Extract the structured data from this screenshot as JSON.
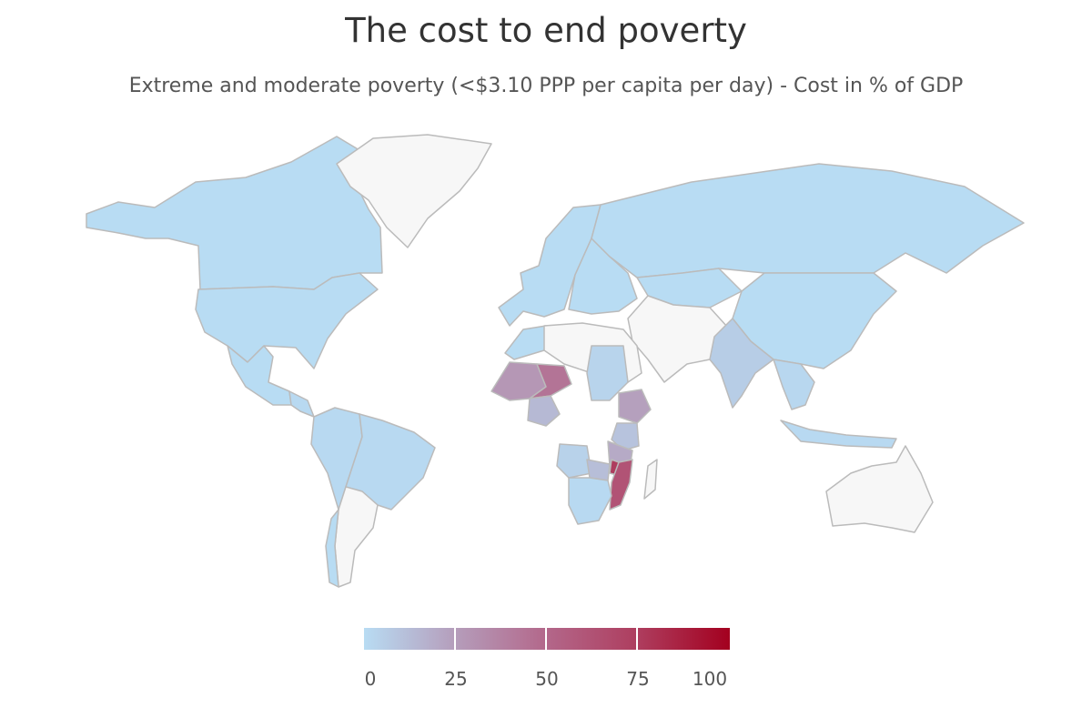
{
  "title": "The cost to end poverty",
  "subtitle": "Extreme and moderate poverty (<$3.10 PPP per capita per day) - Cost in % of GDP",
  "legend": {
    "ticks": [
      "0",
      "25",
      "50",
      "75",
      "100"
    ],
    "min_color": "#b8dcf3",
    "max_color": "#a3001f",
    "range": [
      0,
      100
    ]
  },
  "colors": {
    "no_data": "#f7f7f7",
    "border": "#bbbbbb"
  },
  "chart_data": {
    "type": "choropleth",
    "title": "The cost to end poverty",
    "subtitle": "Extreme and moderate poverty (<$3.10 PPP per capita per day) - Cost in % of GDP",
    "value_range": [
      0,
      100
    ],
    "regions": [
      {
        "name": "Canada",
        "value": 0
      },
      {
        "name": "United States",
        "value": 0
      },
      {
        "name": "Mexico",
        "value": 0
      },
      {
        "name": "Central America",
        "value": 1
      },
      {
        "name": "Brazil",
        "value": 1
      },
      {
        "name": "Andean South America",
        "value": 1
      },
      {
        "name": "Chile",
        "value": 0
      },
      {
        "name": "Western Europe",
        "value": 0
      },
      {
        "name": "Eastern Europe",
        "value": 0
      },
      {
        "name": "Russia",
        "value": 0
      },
      {
        "name": "Kazakhstan",
        "value": 0
      },
      {
        "name": "China",
        "value": 0
      },
      {
        "name": "India",
        "value": 6
      },
      {
        "name": "Southeast Asia",
        "value": 2
      },
      {
        "name": "Indonesia",
        "value": 1
      },
      {
        "name": "Morocco",
        "value": 0
      },
      {
        "name": "Sudan",
        "value": 3
      },
      {
        "name": "Mali",
        "value": 28
      },
      {
        "name": "Niger",
        "value": 44
      },
      {
        "name": "Nigeria",
        "value": 14
      },
      {
        "name": "Ethiopia",
        "value": 24
      },
      {
        "name": "Kenya",
        "value": 10
      },
      {
        "name": "Tanzania",
        "value": 20
      },
      {
        "name": "Zambia",
        "value": 12
      },
      {
        "name": "Malawi",
        "value": 75
      },
      {
        "name": "Mozambique",
        "value": 62
      },
      {
        "name": "Angola",
        "value": 4
      },
      {
        "name": "South Africa",
        "value": 1
      },
      {
        "name": "Greenland",
        "value": null
      },
      {
        "name": "Australia",
        "value": null
      },
      {
        "name": "Middle East",
        "value": null
      },
      {
        "name": "Sahara",
        "value": null
      },
      {
        "name": "Madagascar",
        "value": null
      },
      {
        "name": "Argentina",
        "value": null
      }
    ]
  }
}
